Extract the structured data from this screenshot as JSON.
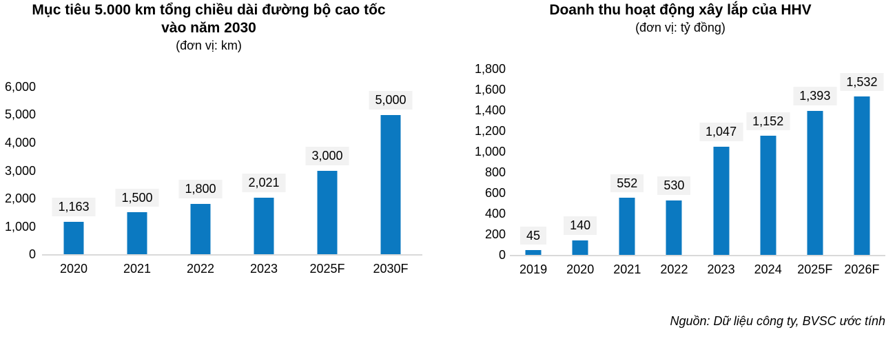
{
  "colors": {
    "bar": "#0b79c1",
    "label_bg": "#f2f2f2",
    "axis_line": "#d9d9d9",
    "text": "#000000",
    "background": "#ffffff"
  },
  "source_note": "Nguồn: Dữ liệu công ty, BVSC ước tính",
  "chart_data": [
    {
      "id": "expressway-target",
      "type": "bar",
      "title": "Mục tiêu 5.000 km tổng chiều dài đường bộ cao tốc vào năm 2030",
      "subtitle": "(đơn vị: km)",
      "categories": [
        "2020",
        "2021",
        "2022",
        "2023",
        "2025F",
        "2030F"
      ],
      "values": [
        1163,
        1500,
        1800,
        2021,
        3000,
        5000
      ],
      "data_labels": [
        "1,163",
        "1,500",
        "1,800",
        "2,021",
        "3,000",
        "5,000"
      ],
      "ylim": [
        0,
        6000
      ],
      "ytick_step": 1000,
      "yticks": [
        "6,000",
        "5,000",
        "4,000",
        "3,000",
        "2,000",
        "1,000",
        "0"
      ],
      "xlabel": "",
      "ylabel": "",
      "grid": false,
      "legend": false
    },
    {
      "id": "hhv-construction-revenue",
      "type": "bar",
      "title": "Doanh thu hoạt động xây lắp của HHV",
      "subtitle": "(đơn vị: tỷ đồng)",
      "categories": [
        "2019",
        "2020",
        "2021",
        "2022",
        "2023",
        "2024",
        "2025F",
        "2026F"
      ],
      "values": [
        45,
        140,
        552,
        530,
        1047,
        1152,
        1393,
        1532
      ],
      "data_labels": [
        "45",
        "140",
        "552",
        "530",
        "1,047",
        "1,152",
        "1,393",
        "1,532"
      ],
      "ylim": [
        0,
        1800
      ],
      "ytick_step": 200,
      "yticks": [
        "1,800",
        "1,600",
        "1,400",
        "1,200",
        "1,000",
        "800",
        "600",
        "400",
        "200",
        "0"
      ],
      "xlabel": "",
      "ylabel": "",
      "grid": false,
      "legend": false
    }
  ]
}
